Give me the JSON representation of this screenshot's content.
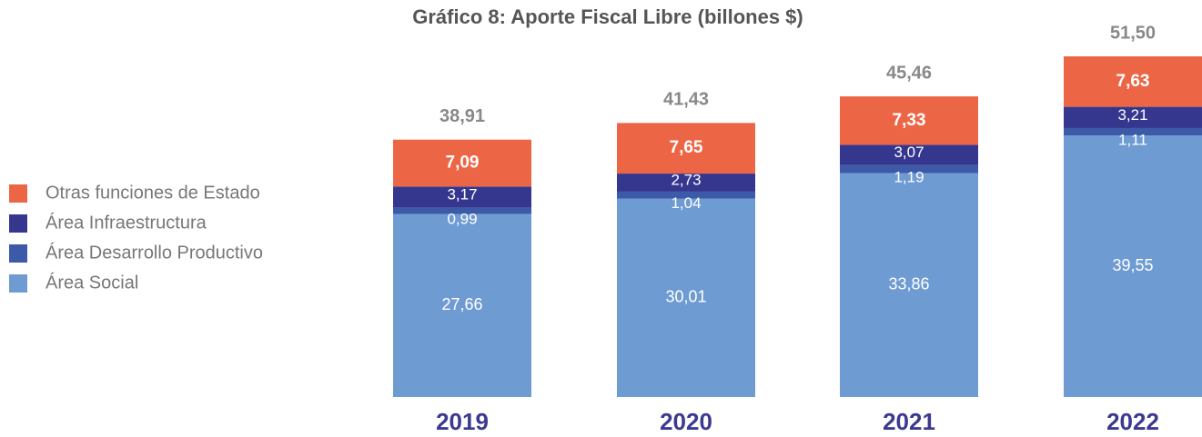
{
  "chart_data": {
    "type": "stacked_bar",
    "title": "Gráfico 8: Aporte Fiscal Libre (billones $)",
    "categories": [
      "2019",
      "2020",
      "2021",
      "2022"
    ],
    "series": [
      {
        "name": "Área Social",
        "color": "#6f9bd3",
        "values": [
          27.66,
          30.01,
          33.86,
          39.55
        ],
        "value_labels": [
          "27,66",
          "30,01",
          "33,86",
          "39,55"
        ]
      },
      {
        "name": "Área Desarrollo Productivo",
        "color": "#3d5aa8",
        "values": [
          0.99,
          1.04,
          1.19,
          1.11
        ],
        "value_labels": [
          "0,99",
          "1,04",
          "1,19",
          "1,11"
        ]
      },
      {
        "name": "Área Infraestructura",
        "color": "#35378f",
        "values": [
          3.17,
          2.73,
          3.07,
          3.21
        ],
        "value_labels": [
          "3,17",
          "2,73",
          "3,07",
          "3,21"
        ]
      },
      {
        "name": "Otras funciones de Estado",
        "color": "#ec6645",
        "values": [
          7.09,
          7.65,
          7.33,
          7.63
        ],
        "value_labels": [
          "7,09",
          "7,65",
          "7,33",
          "7,63"
        ]
      }
    ],
    "totals": [
      38.91,
      41.43,
      45.46,
      51.5
    ],
    "total_labels": [
      "38,91",
      "41,43",
      "45,46",
      "51,50"
    ],
    "ylim": [
      0,
      57
    ]
  }
}
